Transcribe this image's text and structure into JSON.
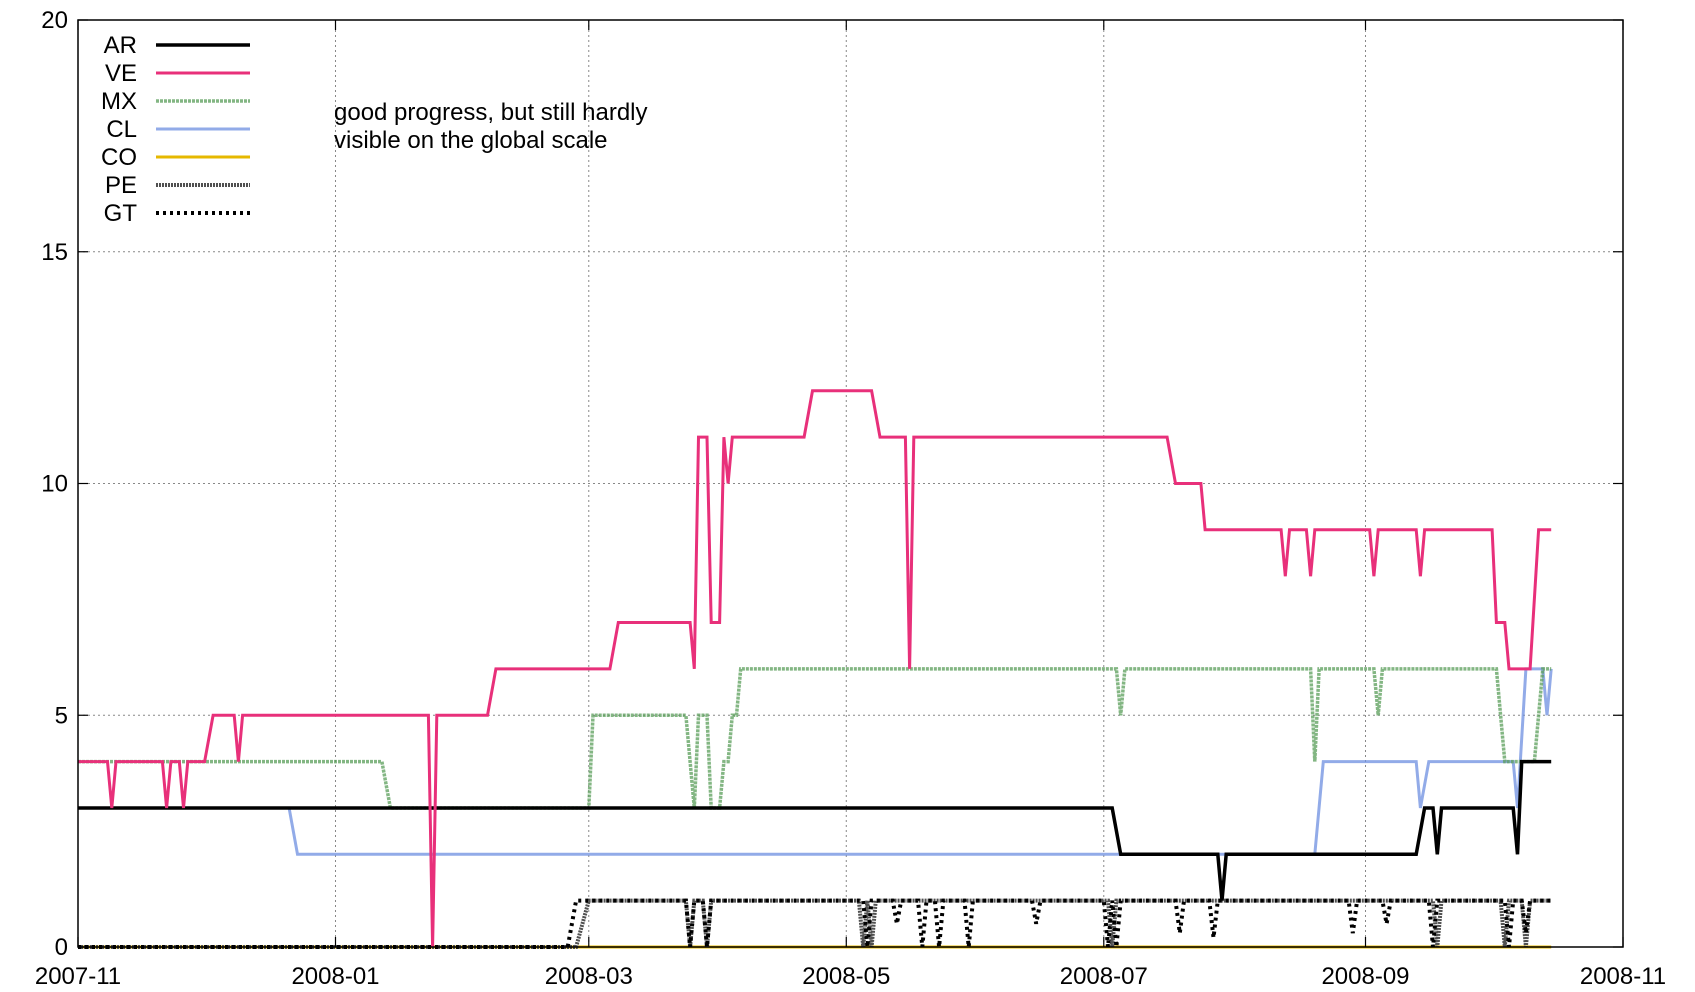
{
  "chart_data": {
    "type": "line",
    "title": "",
    "xlabel": "",
    "ylabel": "",
    "xlim": [
      "2007-11-01",
      "2008-11-01"
    ],
    "ylim": [
      0,
      20
    ],
    "x_ticks": [
      "2007-11",
      "2008-01",
      "2008-03",
      "2008-05",
      "2008-07",
      "2008-09",
      "2008-11"
    ],
    "y_ticks": [
      0,
      5,
      10,
      15,
      20
    ],
    "grid": true,
    "legend_position": "top-left",
    "annotations": [
      "good progress, but still hardly",
      "visible on the global scale"
    ],
    "series": [
      {
        "name": "AR",
        "color": "#000000",
        "dash": "solid",
        "points": [
          [
            "2007-11-01",
            3
          ],
          [
            "2008-07-03",
            3
          ],
          [
            "2008-07-05",
            2
          ],
          [
            "2008-07-28",
            2
          ],
          [
            "2008-07-29",
            1
          ],
          [
            "2008-07-30",
            2
          ],
          [
            "2008-09-13",
            2
          ],
          [
            "2008-09-15",
            3
          ],
          [
            "2008-09-17",
            3
          ],
          [
            "2008-09-18",
            2
          ],
          [
            "2008-09-19",
            3
          ],
          [
            "2008-10-06",
            3
          ],
          [
            "2008-10-07",
            2
          ],
          [
            "2008-10-08",
            4
          ],
          [
            "2008-10-15",
            4
          ]
        ]
      },
      {
        "name": "VE",
        "color": "#e8307a",
        "dash": "solid",
        "points": [
          [
            "2007-11-01",
            4
          ],
          [
            "2007-11-08",
            4
          ],
          [
            "2007-11-09",
            3
          ],
          [
            "2007-11-10",
            4
          ],
          [
            "2007-11-21",
            4
          ],
          [
            "2007-11-22",
            3
          ],
          [
            "2007-11-23",
            4
          ],
          [
            "2007-11-25",
            4
          ],
          [
            "2007-11-26",
            3
          ],
          [
            "2007-11-27",
            4
          ],
          [
            "2007-12-01",
            4
          ],
          [
            "2007-12-03",
            5
          ],
          [
            "2007-12-08",
            5
          ],
          [
            "2007-12-09",
            4
          ],
          [
            "2007-12-10",
            5
          ],
          [
            "2008-01-23",
            5
          ],
          [
            "2008-01-24",
            0
          ],
          [
            "2008-01-25",
            5
          ],
          [
            "2008-02-06",
            5
          ],
          [
            "2008-02-08",
            6
          ],
          [
            "2008-03-06",
            6
          ],
          [
            "2008-03-08",
            7
          ],
          [
            "2008-03-25",
            7
          ],
          [
            "2008-03-26",
            6
          ],
          [
            "2008-03-27",
            11
          ],
          [
            "2008-03-29",
            11
          ],
          [
            "2008-03-30",
            7
          ],
          [
            "2008-04-01",
            7
          ],
          [
            "2008-04-02",
            11
          ],
          [
            "2008-04-03",
            10
          ],
          [
            "2008-04-04",
            11
          ],
          [
            "2008-04-21",
            11
          ],
          [
            "2008-04-23",
            12
          ],
          [
            "2008-05-07",
            12
          ],
          [
            "2008-05-09",
            11
          ],
          [
            "2008-05-15",
            11
          ],
          [
            "2008-05-16",
            6
          ],
          [
            "2008-05-17",
            11
          ],
          [
            "2008-07-16",
            11
          ],
          [
            "2008-07-18",
            10
          ],
          [
            "2008-07-24",
            10
          ],
          [
            "2008-07-25",
            9
          ],
          [
            "2008-08-12",
            9
          ],
          [
            "2008-08-13",
            8
          ],
          [
            "2008-08-14",
            9
          ],
          [
            "2008-08-18",
            9
          ],
          [
            "2008-08-19",
            8
          ],
          [
            "2008-08-20",
            9
          ],
          [
            "2008-09-02",
            9
          ],
          [
            "2008-09-03",
            8
          ],
          [
            "2008-09-04",
            9
          ],
          [
            "2008-09-13",
            9
          ],
          [
            "2008-09-14",
            8
          ],
          [
            "2008-09-15",
            9
          ],
          [
            "2008-10-01",
            9
          ],
          [
            "2008-10-02",
            7
          ],
          [
            "2008-10-04",
            7
          ],
          [
            "2008-10-05",
            6
          ],
          [
            "2008-10-10",
            6
          ],
          [
            "2008-10-12",
            9
          ],
          [
            "2008-10-15",
            9
          ]
        ]
      },
      {
        "name": "MX",
        "color": "#5a9e5a",
        "dash": "dashed",
        "points": [
          [
            "2007-11-01",
            4
          ],
          [
            "2008-01-12",
            4
          ],
          [
            "2008-01-14",
            3
          ],
          [
            "2008-03-01",
            3
          ],
          [
            "2008-03-02",
            5
          ],
          [
            "2008-03-24",
            5
          ],
          [
            "2008-03-26",
            3
          ],
          [
            "2008-03-27",
            5
          ],
          [
            "2008-03-29",
            5
          ],
          [
            "2008-03-30",
            3
          ],
          [
            "2008-04-01",
            3
          ],
          [
            "2008-04-02",
            4
          ],
          [
            "2008-04-03",
            4
          ],
          [
            "2008-04-04",
            5
          ],
          [
            "2008-04-05",
            5
          ],
          [
            "2008-04-06",
            6
          ],
          [
            "2008-07-04",
            6
          ],
          [
            "2008-07-05",
            5
          ],
          [
            "2008-07-06",
            6
          ],
          [
            "2008-08-19",
            6
          ],
          [
            "2008-08-20",
            4
          ],
          [
            "2008-08-21",
            6
          ],
          [
            "2008-09-03",
            6
          ],
          [
            "2008-09-04",
            5
          ],
          [
            "2008-09-05",
            6
          ],
          [
            "2008-10-02",
            6
          ],
          [
            "2008-10-04",
            4
          ],
          [
            "2008-10-11",
            4
          ],
          [
            "2008-10-13",
            6
          ],
          [
            "2008-10-15",
            6
          ]
        ]
      },
      {
        "name": "CL",
        "color": "#6e8fe0",
        "dash": "solid",
        "points": [
          [
            "2007-11-01",
            3
          ],
          [
            "2007-12-21",
            3
          ],
          [
            "2007-12-23",
            2
          ],
          [
            "2008-08-20",
            2
          ],
          [
            "2008-08-22",
            4
          ],
          [
            "2008-09-13",
            4
          ],
          [
            "2008-09-14",
            3
          ],
          [
            "2008-09-16",
            4
          ],
          [
            "2008-10-06",
            4
          ],
          [
            "2008-10-07",
            3
          ],
          [
            "2008-10-09",
            6
          ],
          [
            "2008-10-13",
            6
          ],
          [
            "2008-10-14",
            5
          ],
          [
            "2008-10-15",
            6
          ]
        ]
      },
      {
        "name": "CO",
        "color": "#e6b800",
        "dash": "solid",
        "points": [
          [
            "2007-11-01",
            0
          ],
          [
            "2008-10-15",
            0
          ]
        ]
      },
      {
        "name": "PE",
        "color": "#505050",
        "dash": "fine",
        "points": [
          [
            "2007-11-01",
            0
          ],
          [
            "2008-02-27",
            0
          ],
          [
            "2008-03-01",
            1
          ],
          [
            "2008-03-24",
            1
          ],
          [
            "2008-03-25",
            0
          ],
          [
            "2008-03-26",
            1
          ],
          [
            "2008-03-28",
            1
          ],
          [
            "2008-03-29",
            0
          ],
          [
            "2008-03-30",
            1
          ],
          [
            "2008-05-04",
            1
          ],
          [
            "2008-05-05",
            0
          ],
          [
            "2008-05-06",
            1
          ],
          [
            "2008-05-07",
            0
          ],
          [
            "2008-05-08",
            1
          ],
          [
            "2008-07-02",
            1
          ],
          [
            "2008-07-03",
            0
          ],
          [
            "2008-07-04",
            1
          ],
          [
            "2008-09-17",
            1
          ],
          [
            "2008-09-18",
            0
          ],
          [
            "2008-09-19",
            1
          ],
          [
            "2008-10-03",
            1
          ],
          [
            "2008-10-04",
            0
          ],
          [
            "2008-10-05",
            1
          ],
          [
            "2008-10-08",
            1
          ],
          [
            "2008-10-09",
            0
          ],
          [
            "2008-10-10",
            1
          ],
          [
            "2008-10-15",
            1
          ]
        ]
      },
      {
        "name": "GT",
        "color": "#000000",
        "dash": "dotted",
        "points": [
          [
            "2007-11-01",
            0
          ],
          [
            "2008-02-25",
            0
          ],
          [
            "2008-02-27",
            1
          ],
          [
            "2008-03-24",
            1
          ],
          [
            "2008-03-25",
            0
          ],
          [
            "2008-03-26",
            1
          ],
          [
            "2008-03-28",
            1
          ],
          [
            "2008-03-29",
            0
          ],
          [
            "2008-03-30",
            1
          ],
          [
            "2008-05-05",
            1
          ],
          [
            "2008-05-06",
            0
          ],
          [
            "2008-05-07",
            1
          ],
          [
            "2008-05-12",
            1
          ],
          [
            "2008-05-13",
            0.5
          ],
          [
            "2008-05-14",
            1
          ],
          [
            "2008-05-18",
            1
          ],
          [
            "2008-05-19",
            0
          ],
          [
            "2008-05-20",
            1
          ],
          [
            "2008-05-22",
            1
          ],
          [
            "2008-05-23",
            0
          ],
          [
            "2008-05-24",
            1
          ],
          [
            "2008-05-29",
            1
          ],
          [
            "2008-05-30",
            0
          ],
          [
            "2008-05-31",
            1
          ],
          [
            "2008-06-14",
            1
          ],
          [
            "2008-06-15",
            0.5
          ],
          [
            "2008-06-16",
            1
          ],
          [
            "2008-07-01",
            1
          ],
          [
            "2008-07-02",
            0
          ],
          [
            "2008-07-03",
            1
          ],
          [
            "2008-07-04",
            0
          ],
          [
            "2008-07-05",
            1
          ],
          [
            "2008-07-18",
            1
          ],
          [
            "2008-07-19",
            0.3
          ],
          [
            "2008-07-20",
            1
          ],
          [
            "2008-07-26",
            1
          ],
          [
            "2008-07-27",
            0.2
          ],
          [
            "2008-07-28",
            1
          ],
          [
            "2008-08-28",
            1
          ],
          [
            "2008-08-29",
            0.3
          ],
          [
            "2008-08-30",
            1
          ],
          [
            "2008-09-05",
            1
          ],
          [
            "2008-09-06",
            0.5
          ],
          [
            "2008-09-07",
            1
          ],
          [
            "2008-09-16",
            1
          ],
          [
            "2008-09-17",
            0
          ],
          [
            "2008-09-18",
            1
          ],
          [
            "2008-10-04",
            1
          ],
          [
            "2008-10-05",
            0
          ],
          [
            "2008-10-06",
            1
          ],
          [
            "2008-10-08",
            1
          ],
          [
            "2008-10-09",
            0.3
          ],
          [
            "2008-10-10",
            1
          ],
          [
            "2008-10-15",
            1
          ]
        ]
      }
    ]
  }
}
